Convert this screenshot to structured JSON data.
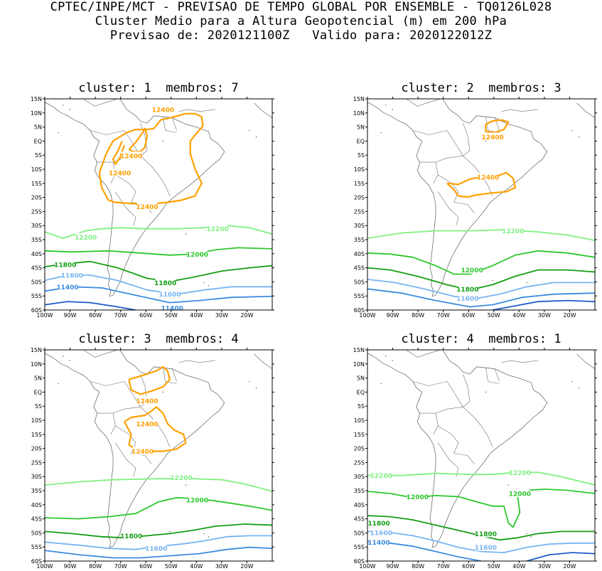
{
  "header": {
    "line1": "CPTEC/INPE/MCT - PREVISAO DE TEMPO GLOBAL POR ENSEMBLE - TQ0126L028",
    "line2": "Cluster Medio para a Altura Geopotencial (m) em 200 hPa",
    "line3": "Previsao de: 2020121100Z   Valido para: 2020122012Z"
  },
  "axes": {
    "lat_labels": [
      "15N",
      "10N",
      "5N",
      "EQ",
      "5S",
      "10S",
      "15S",
      "20S",
      "25S",
      "30S",
      "35S",
      "40S",
      "45S",
      "50S",
      "55S",
      "60S"
    ],
    "lon_labels": [
      "100W",
      "90W",
      "80W",
      "70W",
      "60W",
      "50W",
      "40W",
      "30W",
      "20W"
    ]
  },
  "colors": {
    "c12400": "#ffa000",
    "c12200": "#80f080",
    "c12000": "#2cc82c",
    "c11800": "#139e13",
    "c11600": "#78b4f0",
    "c11400": "#3c8ce0",
    "c11200": "#1e5ac8",
    "coast": "#6e6e6e"
  },
  "panels": [
    {
      "title": "cluster: 1  membros: 7",
      "contour_labels": [
        {
          "text": "12400",
          "color": "c12400"
        },
        {
          "text": "12400",
          "color": "c12400"
        },
        {
          "text": "12400",
          "color": "c12400"
        },
        {
          "text": "12400",
          "color": "c12400"
        },
        {
          "text": "12200",
          "color": "c12200"
        },
        {
          "text": "12200",
          "color": "c12200"
        },
        {
          "text": "12000",
          "color": "c12000"
        },
        {
          "text": "11800",
          "color": "c11800"
        },
        {
          "text": "11800",
          "color": "c11800"
        },
        {
          "text": "11600",
          "color": "c11600"
        },
        {
          "text": "11600",
          "color": "c11600"
        },
        {
          "text": "11400",
          "color": "c11400"
        },
        {
          "text": "11400",
          "color": "c11400"
        }
      ]
    },
    {
      "title": "cluster: 2  membros: 3",
      "contour_labels": [
        {
          "text": "12400",
          "color": "c12400"
        },
        {
          "text": "12400",
          "color": "c12400"
        },
        {
          "text": "12200",
          "color": "c12200"
        },
        {
          "text": "12000",
          "color": "c12000"
        },
        {
          "text": "11800",
          "color": "c11800"
        },
        {
          "text": "11600",
          "color": "c11600"
        }
      ]
    },
    {
      "title": "cluster: 3  membros: 4",
      "contour_labels": [
        {
          "text": "12400",
          "color": "c12400"
        },
        {
          "text": "12400",
          "color": "c12400"
        },
        {
          "text": "12400",
          "color": "c12400"
        },
        {
          "text": "12200",
          "color": "c12200"
        },
        {
          "text": "12000",
          "color": "c12000"
        },
        {
          "text": "11800",
          "color": "c11800"
        },
        {
          "text": "11600",
          "color": "c11600"
        }
      ]
    },
    {
      "title": "cluster: 4  membros: 1",
      "contour_labels": [
        {
          "text": "12200",
          "color": "c12200"
        },
        {
          "text": "12200",
          "color": "c12200"
        },
        {
          "text": "12000",
          "color": "c12000"
        },
        {
          "text": "12000",
          "color": "c12000"
        },
        {
          "text": "11800",
          "color": "c11800"
        },
        {
          "text": "11800",
          "color": "c11800"
        },
        {
          "text": "11600",
          "color": "c11600"
        },
        {
          "text": "11600",
          "color": "c11600"
        },
        {
          "text": "11400",
          "color": "c11400"
        }
      ]
    }
  ]
}
